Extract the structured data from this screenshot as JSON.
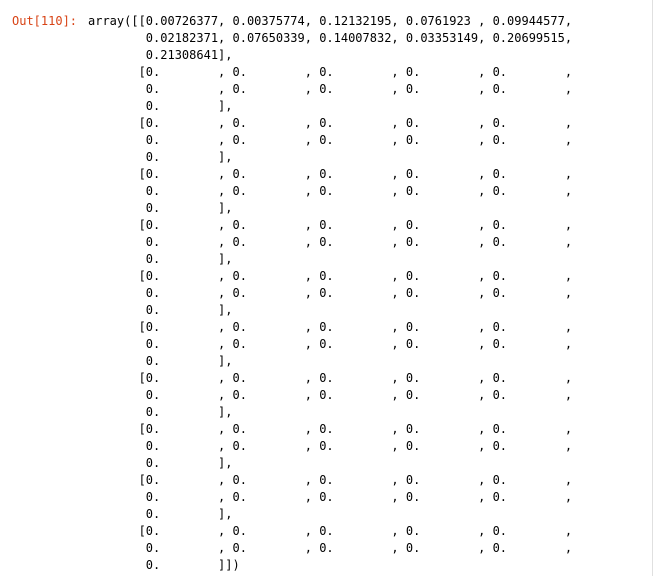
{
  "cell": {
    "prompt": "Out[110]:",
    "lines": [
      "array([[0.00726377, 0.00375774, 0.12132195, 0.0761923 , 0.09944577,",
      "        0.02182371, 0.07650339, 0.14007832, 0.03353149, 0.20699515,",
      "        0.21308641],",
      "       [0.        , 0.        , 0.        , 0.        , 0.        ,",
      "        0.        , 0.        , 0.        , 0.        , 0.        ,",
      "        0.        ],",
      "       [0.        , 0.        , 0.        , 0.        , 0.        ,",
      "        0.        , 0.        , 0.        , 0.        , 0.        ,",
      "        0.        ],",
      "       [0.        , 0.        , 0.        , 0.        , 0.        ,",
      "        0.        , 0.        , 0.        , 0.        , 0.        ,",
      "        0.        ],",
      "       [0.        , 0.        , 0.        , 0.        , 0.        ,",
      "        0.        , 0.        , 0.        , 0.        , 0.        ,",
      "        0.        ],",
      "       [0.        , 0.        , 0.        , 0.        , 0.        ,",
      "        0.        , 0.        , 0.        , 0.        , 0.        ,",
      "        0.        ],",
      "       [0.        , 0.        , 0.        , 0.        , 0.        ,",
      "        0.        , 0.        , 0.        , 0.        , 0.        ,",
      "        0.        ],",
      "       [0.        , 0.        , 0.        , 0.        , 0.        ,",
      "        0.        , 0.        , 0.        , 0.        , 0.        ,",
      "        0.        ],",
      "       [0.        , 0.        , 0.        , 0.        , 0.        ,",
      "        0.        , 0.        , 0.        , 0.        , 0.        ,",
      "        0.        ],",
      "       [0.        , 0.        , 0.        , 0.        , 0.        ,",
      "        0.        , 0.        , 0.        , 0.        , 0.        ,",
      "        0.        ],",
      "       [0.        , 0.        , 0.        , 0.        , 0.        ,",
      "        0.        , 0.        , 0.        , 0.        , 0.        ,",
      "        0.        ]])"
    ],
    "prompt_color": "#d84315",
    "text_color": "#000000"
  }
}
